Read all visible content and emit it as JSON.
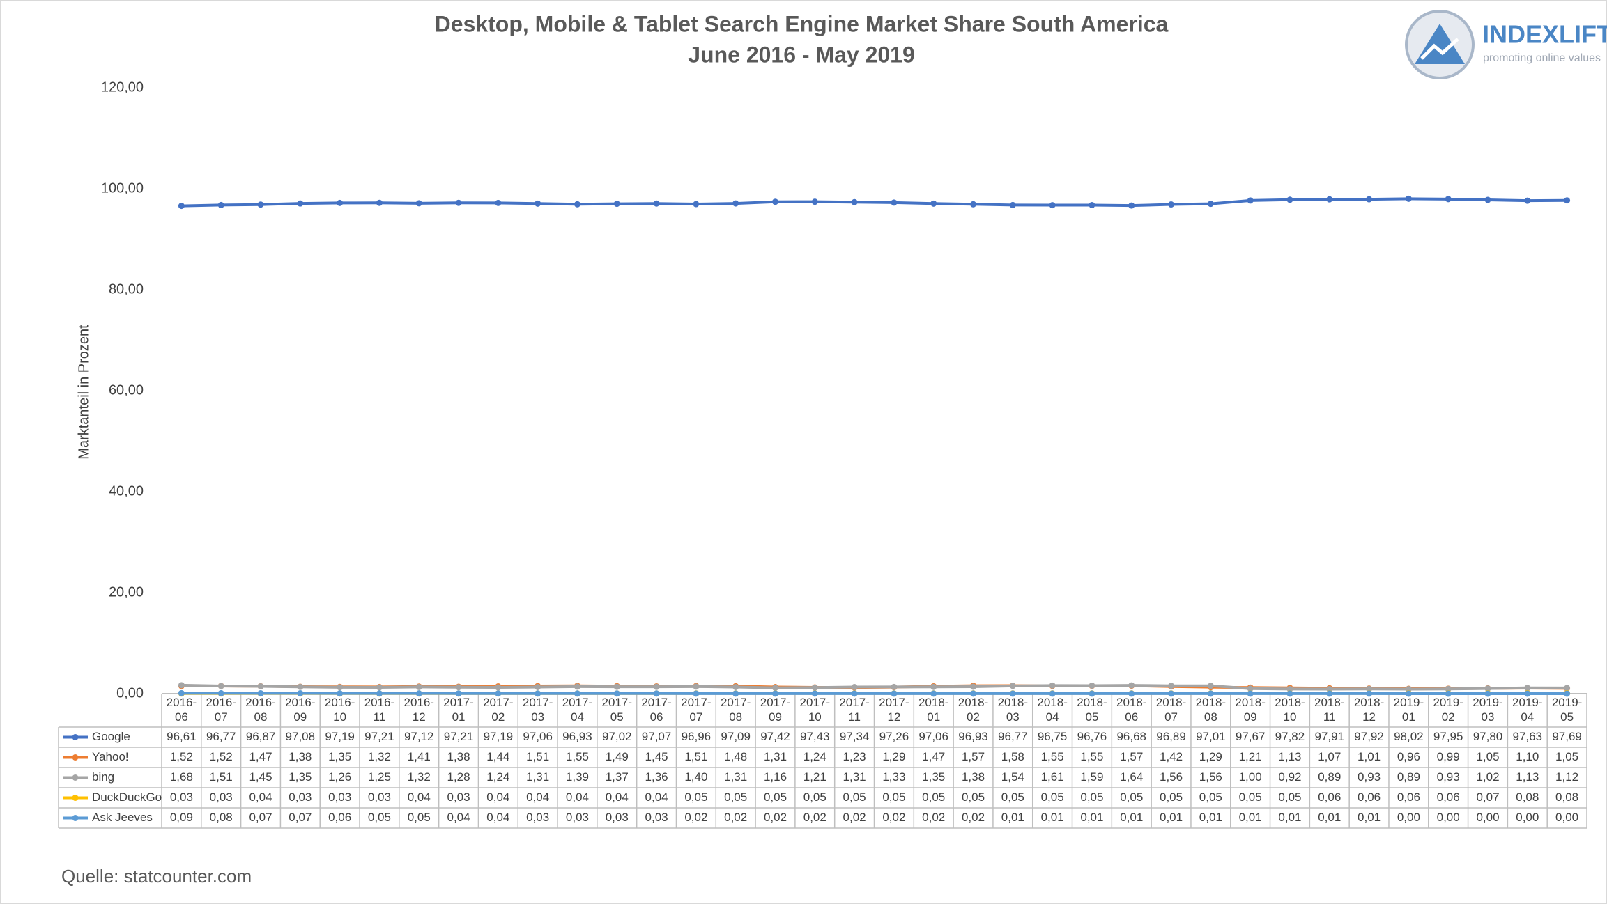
{
  "chart_data": {
    "type": "line",
    "title": "Desktop, Mobile & Tablet Search Engine Market Share South America",
    "subtitle": "June 2016 - May 2019",
    "y_label": "Marktanteil in Prozent",
    "source": "Quelle: statcounter.com",
    "logo": {
      "name": "INDEXLIFT",
      "tagline": "promoting online values"
    },
    "categories": [
      "2016-06",
      "2016-07",
      "2016-08",
      "2016-09",
      "2016-10",
      "2016-11",
      "2016-12",
      "2017-01",
      "2017-02",
      "2017-03",
      "2017-04",
      "2017-05",
      "2017-06",
      "2017-07",
      "2017-08",
      "2017-09",
      "2017-10",
      "2017-11",
      "2017-12",
      "2018-01",
      "2018-02",
      "2018-03",
      "2018-04",
      "2018-05",
      "2018-06",
      "2018-07",
      "2018-08",
      "2018-09",
      "2018-10",
      "2018-11",
      "2018-12",
      "2019-01",
      "2019-02",
      "2019-03",
      "2019-04",
      "2019-05"
    ],
    "ylim": [
      0,
      120
    ],
    "yticks": [
      {
        "value": 0,
        "label": "0,00"
      },
      {
        "value": 20,
        "label": "20,00"
      },
      {
        "value": 40,
        "label": "40,00"
      },
      {
        "value": 60,
        "label": "60,00"
      },
      {
        "value": 80,
        "label": "80,00"
      },
      {
        "value": 100,
        "label": "100,00"
      },
      {
        "value": 120,
        "label": "120,00"
      }
    ],
    "grid": false,
    "series": [
      {
        "name": "Google",
        "color": "#4472c4",
        "values": [
          96.61,
          96.77,
          96.87,
          97.08,
          97.19,
          97.21,
          97.12,
          97.21,
          97.19,
          97.06,
          96.93,
          97.02,
          97.07,
          96.96,
          97.09,
          97.42,
          97.43,
          97.34,
          97.26,
          97.06,
          96.93,
          96.77,
          96.75,
          96.76,
          96.68,
          96.89,
          97.01,
          97.67,
          97.82,
          97.91,
          97.92,
          98.02,
          97.95,
          97.8,
          97.63,
          97.69
        ],
        "value_labels": [
          "96,61",
          "96,77",
          "96,87",
          "97,08",
          "97,19",
          "97,21",
          "97,12",
          "97,21",
          "97,19",
          "97,06",
          "96,93",
          "97,02",
          "97,07",
          "96,96",
          "97,09",
          "97,42",
          "97,43",
          "97,34",
          "97,26",
          "97,06",
          "96,93",
          "96,77",
          "96,75",
          "96,76",
          "96,68",
          "96,89",
          "97,01",
          "97,67",
          "97,82",
          "97,91",
          "97,92",
          "98,02",
          "97,95",
          "97,80",
          "97,63",
          "97,69"
        ]
      },
      {
        "name": "Yahoo!",
        "color": "#ed7d31",
        "values": [
          1.52,
          1.52,
          1.47,
          1.38,
          1.35,
          1.32,
          1.41,
          1.38,
          1.44,
          1.51,
          1.55,
          1.49,
          1.45,
          1.51,
          1.48,
          1.31,
          1.24,
          1.23,
          1.29,
          1.47,
          1.57,
          1.58,
          1.55,
          1.55,
          1.57,
          1.42,
          1.29,
          1.21,
          1.13,
          1.07,
          1.01,
          0.96,
          0.99,
          1.05,
          1.1,
          1.05
        ],
        "value_labels": [
          "1,52",
          "1,52",
          "1,47",
          "1,38",
          "1,35",
          "1,32",
          "1,41",
          "1,38",
          "1,44",
          "1,51",
          "1,55",
          "1,49",
          "1,45",
          "1,51",
          "1,48",
          "1,31",
          "1,24",
          "1,23",
          "1,29",
          "1,47",
          "1,57",
          "1,58",
          "1,55",
          "1,55",
          "1,57",
          "1,42",
          "1,29",
          "1,21",
          "1,13",
          "1,07",
          "1,01",
          "0,96",
          "0,99",
          "1,05",
          "1,10",
          "1,05"
        ]
      },
      {
        "name": "bing",
        "color": "#a5a5a5",
        "values": [
          1.68,
          1.51,
          1.45,
          1.35,
          1.26,
          1.25,
          1.32,
          1.28,
          1.24,
          1.31,
          1.39,
          1.37,
          1.36,
          1.4,
          1.31,
          1.16,
          1.21,
          1.31,
          1.33,
          1.35,
          1.38,
          1.54,
          1.61,
          1.59,
          1.64,
          1.56,
          1.56,
          1.0,
          0.92,
          0.89,
          0.93,
          0.89,
          0.93,
          1.02,
          1.13,
          1.12
        ],
        "value_labels": [
          "1,68",
          "1,51",
          "1,45",
          "1,35",
          "1,26",
          "1,25",
          "1,32",
          "1,28",
          "1,24",
          "1,31",
          "1,39",
          "1,37",
          "1,36",
          "1,40",
          "1,31",
          "1,16",
          "1,21",
          "1,31",
          "1,33",
          "1,35",
          "1,38",
          "1,54",
          "1,61",
          "1,59",
          "1,64",
          "1,56",
          "1,56",
          "1,00",
          "0,92",
          "0,89",
          "0,93",
          "0,89",
          "0,93",
          "1,02",
          "1,13",
          "1,12"
        ]
      },
      {
        "name": "DuckDuckGo",
        "color": "#ffc000",
        "values": [
          0.03,
          0.03,
          0.04,
          0.03,
          0.03,
          0.03,
          0.04,
          0.03,
          0.04,
          0.04,
          0.04,
          0.04,
          0.04,
          0.05,
          0.05,
          0.05,
          0.05,
          0.05,
          0.05,
          0.05,
          0.05,
          0.05,
          0.05,
          0.05,
          0.05,
          0.05,
          0.05,
          0.05,
          0.05,
          0.06,
          0.06,
          0.06,
          0.06,
          0.07,
          0.08,
          0.08
        ],
        "value_labels": [
          "0,03",
          "0,03",
          "0,04",
          "0,03",
          "0,03",
          "0,03",
          "0,04",
          "0,03",
          "0,04",
          "0,04",
          "0,04",
          "0,04",
          "0,04",
          "0,05",
          "0,05",
          "0,05",
          "0,05",
          "0,05",
          "0,05",
          "0,05",
          "0,05",
          "0,05",
          "0,05",
          "0,05",
          "0,05",
          "0,05",
          "0,05",
          "0,05",
          "0,05",
          "0,06",
          "0,06",
          "0,06",
          "0,06",
          "0,07",
          "0,08",
          "0,08"
        ]
      },
      {
        "name": "Ask Jeeves",
        "color": "#5b9bd5",
        "values": [
          0.09,
          0.08,
          0.07,
          0.07,
          0.06,
          0.05,
          0.05,
          0.04,
          0.04,
          0.03,
          0.03,
          0.03,
          0.03,
          0.02,
          0.02,
          0.02,
          0.02,
          0.02,
          0.02,
          0.02,
          0.02,
          0.01,
          0.01,
          0.01,
          0.01,
          0.01,
          0.01,
          0.01,
          0.01,
          0.01,
          0.01,
          0,
          0,
          0,
          0,
          0
        ],
        "value_labels": [
          "0,09",
          "0,08",
          "0,07",
          "0,07",
          "0,06",
          "0,05",
          "0,05",
          "0,04",
          "0,04",
          "0,03",
          "0,03",
          "0,03",
          "0,03",
          "0,02",
          "0,02",
          "0,02",
          "0,02",
          "0,02",
          "0,02",
          "0,02",
          "0,02",
          "0,01",
          "0,01",
          "0,01",
          "0,01",
          "0,01",
          "0,01",
          "0,01",
          "0,01",
          "0,01",
          "0,01",
          "0,00",
          "0,00",
          "0,00",
          "0,00",
          "0,00"
        ]
      }
    ]
  }
}
